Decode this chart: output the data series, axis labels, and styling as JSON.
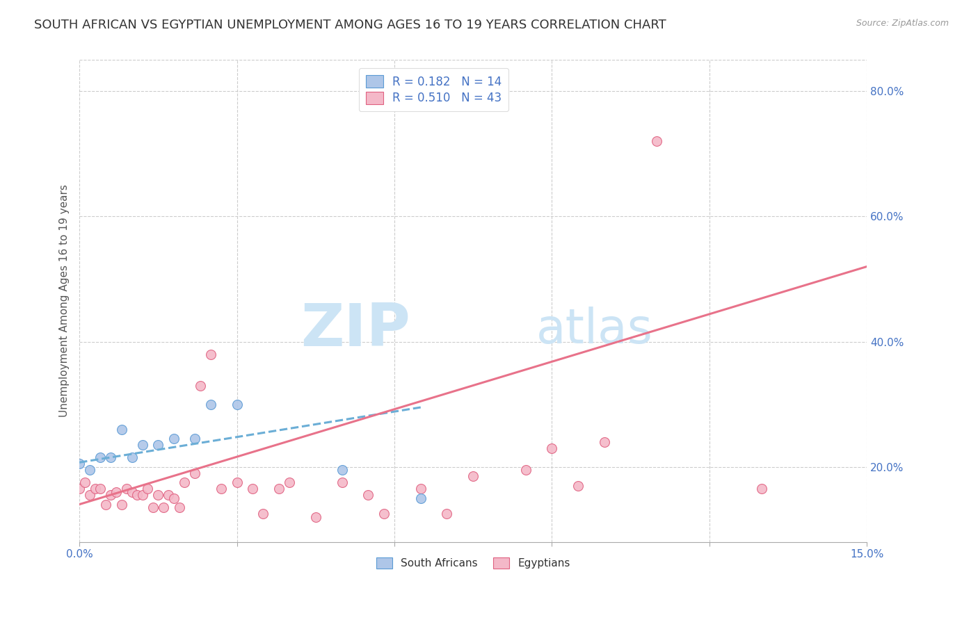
{
  "title": "SOUTH AFRICAN VS EGYPTIAN UNEMPLOYMENT AMONG AGES 16 TO 19 YEARS CORRELATION CHART",
  "source": "Source: ZipAtlas.com",
  "ylabel": "Unemployment Among Ages 16 to 19 years",
  "xlim": [
    0.0,
    0.15
  ],
  "ylim": [
    0.08,
    0.85
  ],
  "xticks": [
    0.0,
    0.03,
    0.06,
    0.09,
    0.12,
    0.15
  ],
  "xtick_labels": [
    "0.0%",
    "",
    "",
    "",
    "",
    "15.0%"
  ],
  "yticks_right": [
    0.2,
    0.4,
    0.6,
    0.8
  ],
  "ytick_labels_right": [
    "20.0%",
    "40.0%",
    "60.0%",
    "80.0%"
  ],
  "sa_color": "#aec6e8",
  "eg_color": "#f4b8c8",
  "sa_edge_color": "#5b9bd5",
  "eg_edge_color": "#e06080",
  "sa_line_color": "#6baed6",
  "eg_line_color": "#e8728a",
  "sa_r": "0.182",
  "sa_n": "14",
  "eg_r": "0.510",
  "eg_n": "43",
  "sa_x": [
    0.0,
    0.002,
    0.004,
    0.006,
    0.008,
    0.01,
    0.012,
    0.015,
    0.018,
    0.022,
    0.025,
    0.03,
    0.05,
    0.065
  ],
  "sa_y": [
    0.205,
    0.195,
    0.215,
    0.215,
    0.26,
    0.215,
    0.235,
    0.235,
    0.245,
    0.245,
    0.3,
    0.3,
    0.195,
    0.15
  ],
  "eg_x": [
    0.0,
    0.001,
    0.002,
    0.003,
    0.004,
    0.005,
    0.006,
    0.007,
    0.008,
    0.009,
    0.01,
    0.011,
    0.012,
    0.013,
    0.014,
    0.015,
    0.016,
    0.017,
    0.018,
    0.019,
    0.02,
    0.022,
    0.023,
    0.025,
    0.027,
    0.03,
    0.033,
    0.035,
    0.038,
    0.04,
    0.045,
    0.05,
    0.055,
    0.058,
    0.065,
    0.07,
    0.075,
    0.085,
    0.09,
    0.095,
    0.1,
    0.11,
    0.13
  ],
  "eg_y": [
    0.165,
    0.175,
    0.155,
    0.165,
    0.165,
    0.14,
    0.155,
    0.16,
    0.14,
    0.165,
    0.16,
    0.155,
    0.155,
    0.165,
    0.135,
    0.155,
    0.135,
    0.155,
    0.15,
    0.135,
    0.175,
    0.19,
    0.33,
    0.38,
    0.165,
    0.175,
    0.165,
    0.125,
    0.165,
    0.175,
    0.12,
    0.175,
    0.155,
    0.125,
    0.165,
    0.125,
    0.185,
    0.195,
    0.23,
    0.17,
    0.24,
    0.72,
    0.165
  ],
  "sa_trend_x": [
    0.0,
    0.065
  ],
  "sa_trend_y": [
    0.207,
    0.295
  ],
  "eg_trend_x": [
    0.0,
    0.15
  ],
  "eg_trend_y": [
    0.14,
    0.52
  ],
  "grid_color": "#cccccc",
  "background_color": "#ffffff",
  "watermark_zip": "ZIP",
  "watermark_atlas": "atlas",
  "watermark_color": "#cce4f5",
  "title_fontsize": 13,
  "label_fontsize": 11,
  "tick_fontsize": 11,
  "legend_fontsize": 12,
  "marker_size": 100
}
